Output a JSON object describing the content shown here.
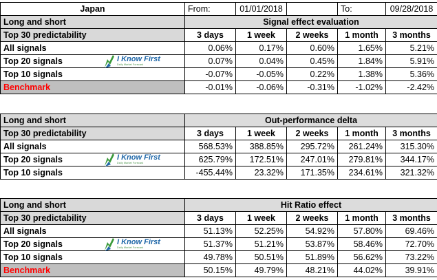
{
  "header": {
    "country": "Japan",
    "from_label": "From:",
    "from_date": "01/01/2018",
    "to_label": "To:",
    "to_date": "09/28/2018"
  },
  "columns": [
    "3 days",
    "1 week",
    "2 weeks",
    "1 month",
    "3 months"
  ],
  "logo": {
    "text": "I Know First",
    "tagline": "Daily Market Forecast"
  },
  "sections": [
    {
      "label": "Long and short",
      "title": "Signal effect evaluation",
      "subheader": "Top 30 predictability",
      "rows": [
        {
          "label": "All signals",
          "values": [
            "0.06%",
            "0.17%",
            "0.60%",
            "1.65%",
            "5.21%"
          ]
        },
        {
          "label": "Top 20 signals",
          "values": [
            "0.07%",
            "0.04%",
            "0.45%",
            "1.84%",
            "5.91%"
          ]
        },
        {
          "label": "Top 10 signals",
          "values": [
            "-0.07%",
            "-0.05%",
            "0.22%",
            "1.38%",
            "5.36%"
          ]
        },
        {
          "label": "Benchmark",
          "values": [
            "-0.01%",
            "-0.06%",
            "-0.31%",
            "-1.02%",
            "-2.42%"
          ]
        }
      ]
    },
    {
      "label": "Long and short",
      "title": "Out-performance delta",
      "subheader": "Top 30 predictability",
      "rows": [
        {
          "label": "All signals",
          "values": [
            "568.53%",
            "388.85%",
            "295.72%",
            "261.24%",
            "315.30%"
          ]
        },
        {
          "label": "Top 20 signals",
          "values": [
            "625.79%",
            "172.51%",
            "247.01%",
            "279.81%",
            "344.17%"
          ]
        },
        {
          "label": "Top 10 signals",
          "values": [
            "-455.44%",
            "23.32%",
            "171.35%",
            "234.61%",
            "321.32%"
          ]
        }
      ]
    },
    {
      "label": "Long and short",
      "title": "Hit Ratio effect",
      "subheader": "Top 30 predictability",
      "rows": [
        {
          "label": "All signals",
          "values": [
            "51.13%",
            "52.25%",
            "54.92%",
            "57.80%",
            "69.46%"
          ]
        },
        {
          "label": "Top 20 signals",
          "values": [
            "51.37%",
            "51.21%",
            "53.87%",
            "58.46%",
            "72.70%"
          ]
        },
        {
          "label": "Top 10 signals",
          "values": [
            "49.78%",
            "50.51%",
            "51.89%",
            "56.62%",
            "73.22%"
          ]
        },
        {
          "label": "Benchmark",
          "values": [
            "50.15%",
            "49.79%",
            "48.21%",
            "44.02%",
            "39.91%"
          ]
        }
      ]
    }
  ]
}
